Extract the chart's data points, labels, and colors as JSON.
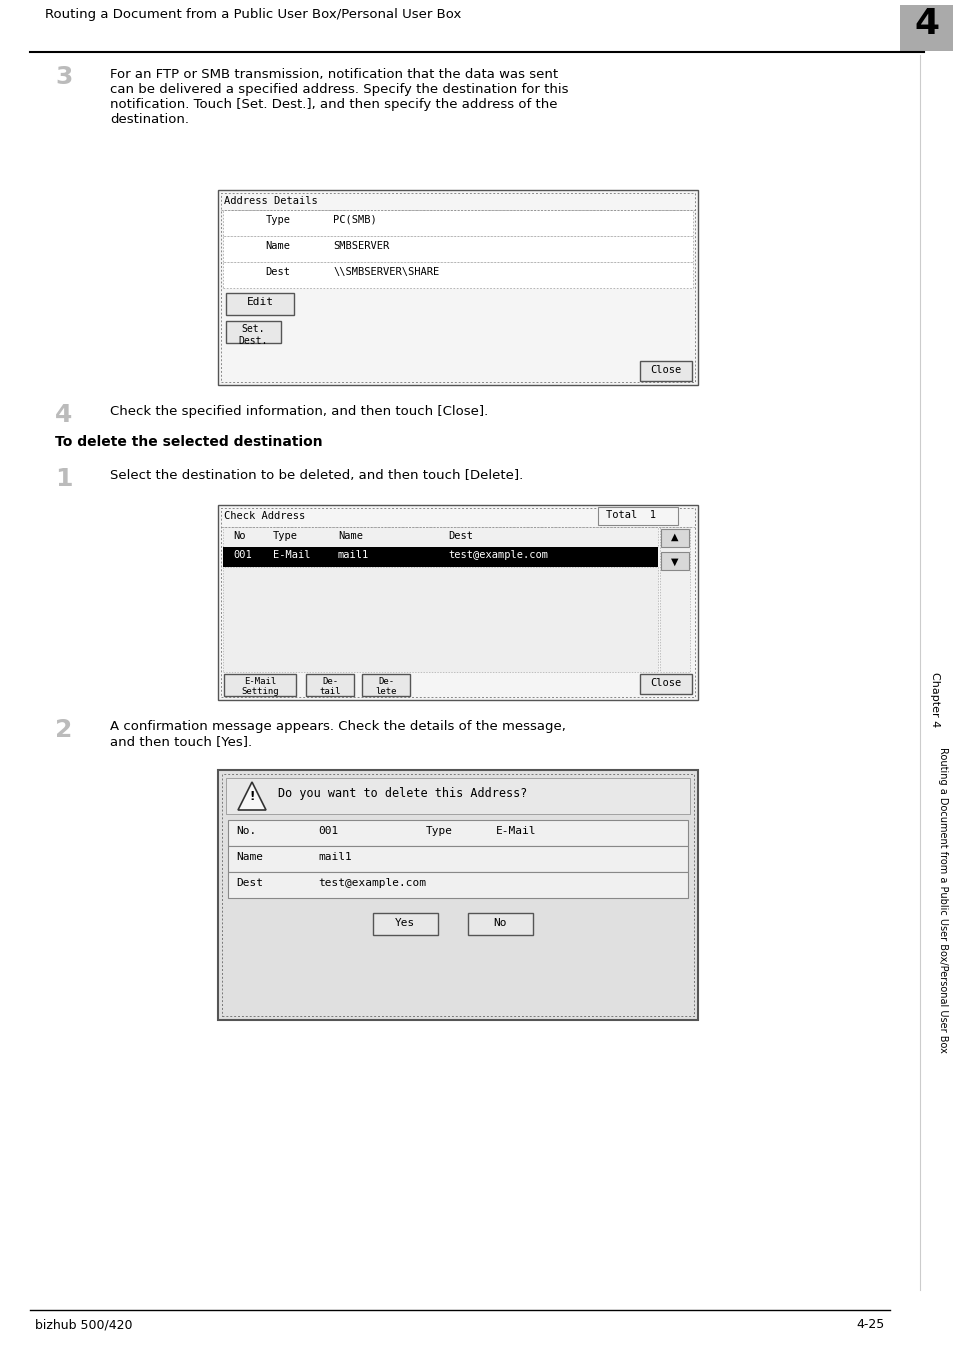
{
  "page_title": "Routing a Document from a Public User Box/Personal User Box",
  "chapter_num": "4",
  "footer_left": "bizhub 500/420",
  "footer_right": "4-25",
  "sidebar_text": "Routing a Document from a Public User Box/Personal User Box",
  "sidebar_chapter": "Chapter 4",
  "bg_color": "#ffffff",
  "step3_num": "3",
  "step3_text": "For an FTP or SMB transmission, notification that the data was sent\ncan be delivered a specified address. Specify the destination for this\nnotification. Touch [Set. Dest.], and then specify the address of the\ndestination.",
  "step4_num": "4",
  "step4_text": "Check the specified information, and then touch [Close].",
  "section_title": "To delete the selected destination",
  "step1_num": "1",
  "step1_text": "Select the destination to be deleted, and then touch [Delete].",
  "step2_num": "2",
  "step2_text": "A confirmation message appears. Check the details of the message,\nand then touch [Yes]."
}
